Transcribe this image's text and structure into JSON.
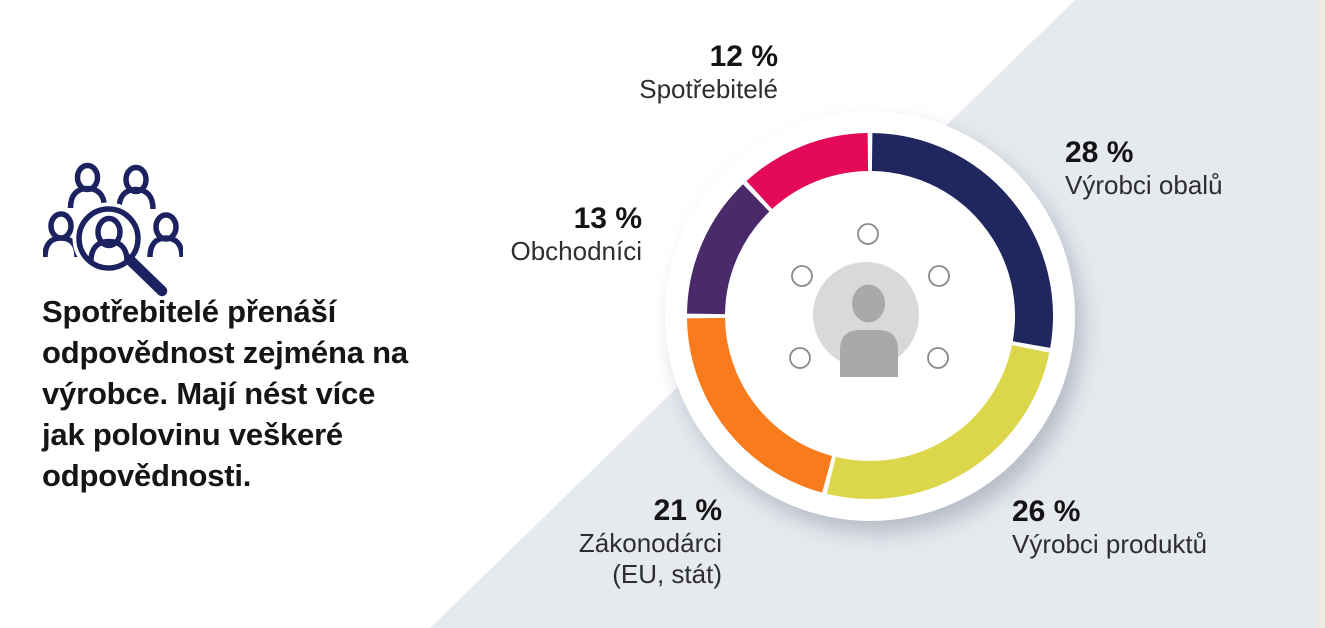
{
  "background": {
    "diagonal_panel_color": "#e6e9ee",
    "right_edge_strip_color": "#f0ebe2"
  },
  "left_panel": {
    "icon": "people-magnifier",
    "icon_color": "#1c2260",
    "headline": "Spotřebitelé přenáší\nodpovědnost zejména na\nvýrobce. Mají nést více\njak polovinu veškeré\nodpovědnosti."
  },
  "chart_data": {
    "type": "pie",
    "variant": "donut",
    "unit": "%",
    "total": 100,
    "start_angle_deg": 0,
    "direction": "clockwise",
    "gap_deg": 1.5,
    "center_icon": "person-avatar",
    "center_icon_colors": {
      "disc": "#d9d9d9",
      "figure": "#a9a9a9",
      "orbit_dot_stroke": "#8a8a8a"
    },
    "segments": [
      {
        "key": "vyrobci-obalu",
        "label": "Výrobci obalů",
        "value": 28,
        "color": "#20275f"
      },
      {
        "key": "vyrobci-produktu",
        "label": "Výrobci produktů",
        "value": 26,
        "color": "#dcd64a"
      },
      {
        "key": "zakonodarci",
        "label": "Zákonodárci (EU, stát)",
        "value": 21,
        "color": "#f87c1d"
      },
      {
        "key": "obchodnici",
        "label": "Obchodníci",
        "value": 13,
        "color": "#4a2a6b"
      },
      {
        "key": "spotrebitele",
        "label": "Spotřebitelé",
        "value": 12,
        "color": "#e40a58"
      }
    ]
  },
  "callouts": [
    {
      "pct": "12 %",
      "name": "Spotřebitelé"
    },
    {
      "pct": "28 %",
      "name": "Výrobci obalů"
    },
    {
      "pct": "13 %",
      "name": "Obchodníci"
    },
    {
      "pct": "21 %",
      "name": "Zákonodárci",
      "name2": "(EU, stát)"
    },
    {
      "pct": "26 %",
      "name": "Výrobci produktů"
    }
  ]
}
